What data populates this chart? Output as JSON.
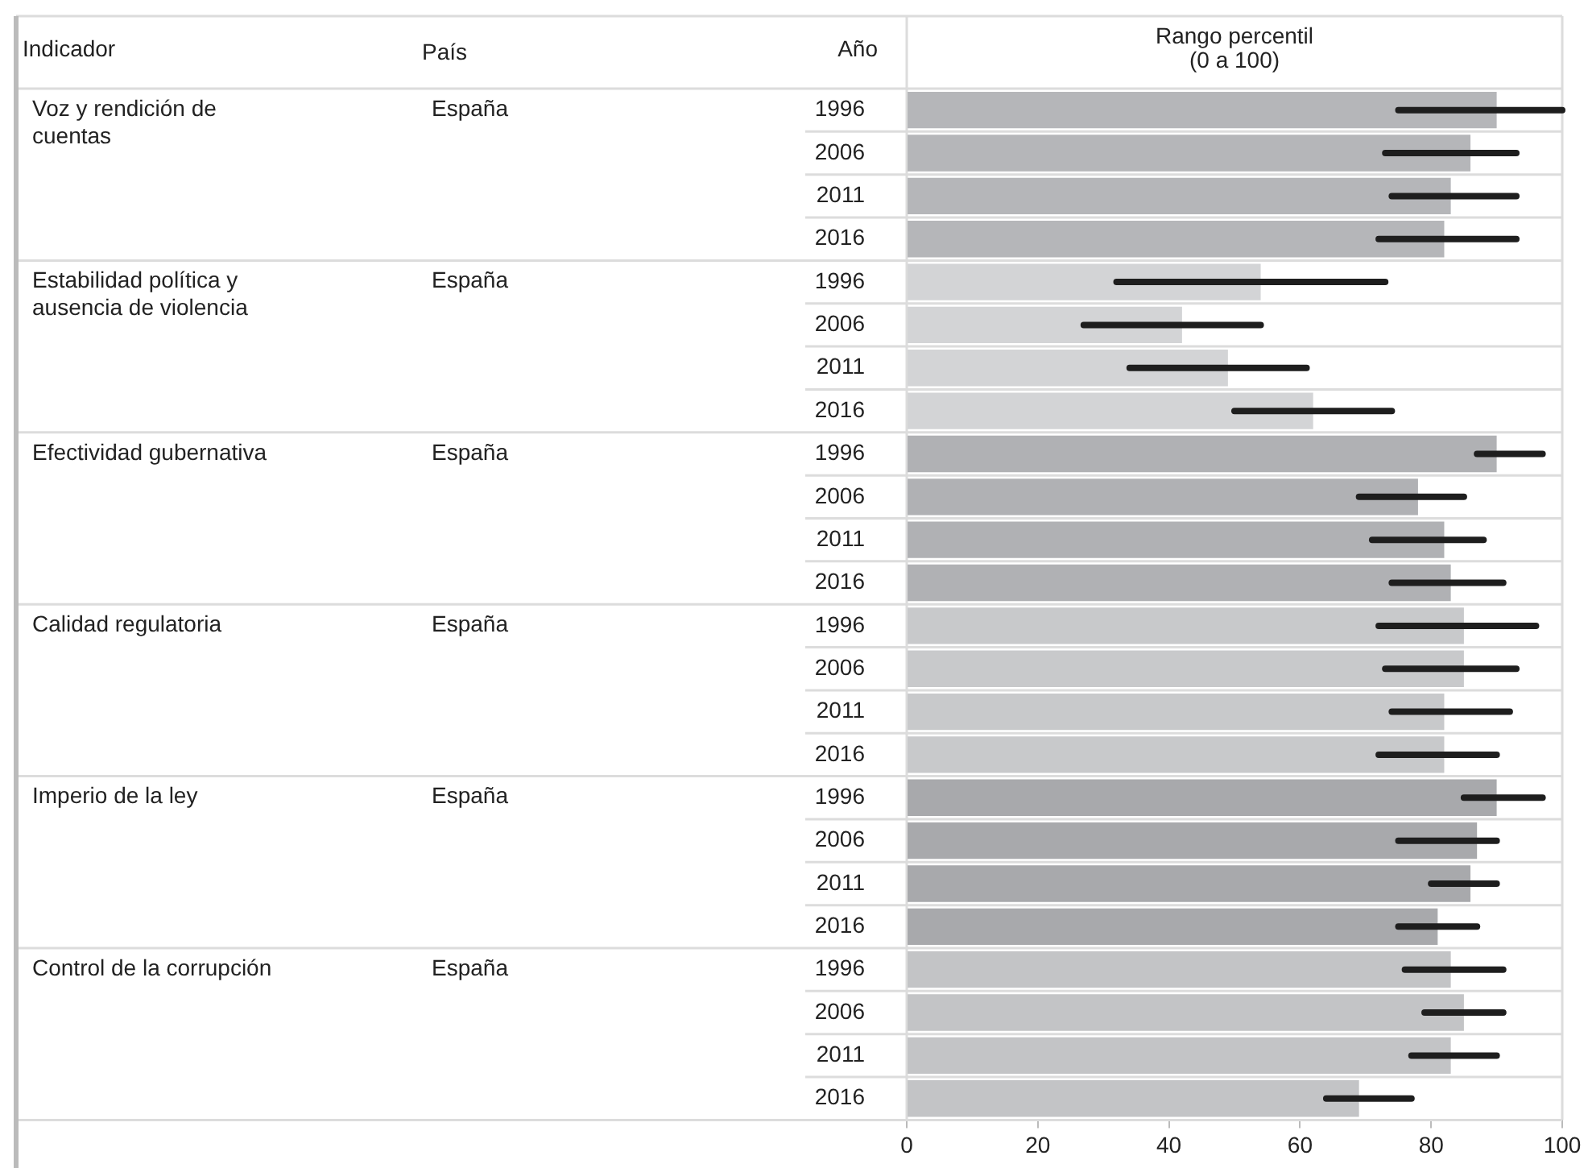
{
  "chart_data": {
    "type": "bar",
    "orientation": "horizontal",
    "xlabel": "Rango percentil\n(0 a 100)",
    "categories": [
      "1996",
      "2006",
      "2011",
      "2016",
      "1996",
      "2006",
      "2011",
      "2016",
      "1996",
      "2006",
      "2011",
      "2016",
      "1996",
      "2006",
      "2011",
      "2016",
      "1996",
      "2006",
      "2011",
      "2016",
      "1996",
      "2006",
      "2011",
      "2016"
    ],
    "values": [
      90,
      86,
      83,
      82,
      54,
      42,
      49,
      62,
      90,
      78,
      82,
      83,
      85,
      85,
      82,
      82,
      90,
      87,
      86,
      81,
      83,
      85,
      83,
      69
    ],
    "errors": [
      [
        75,
        100
      ],
      [
        73,
        93
      ],
      [
        74,
        93
      ],
      [
        72,
        93
      ],
      [
        32,
        73
      ],
      [
        27,
        54
      ],
      [
        34,
        61
      ],
      [
        50,
        74
      ],
      [
        87,
        97
      ],
      [
        69,
        85
      ],
      [
        71,
        88
      ],
      [
        74,
        91
      ],
      [
        72,
        96
      ],
      [
        73,
        93
      ],
      [
        74,
        92
      ],
      [
        72,
        90
      ],
      [
        85,
        97
      ],
      [
        75,
        90
      ],
      [
        80,
        90
      ],
      [
        75,
        87
      ],
      [
        76,
        91
      ],
      [
        79,
        91
      ],
      [
        77,
        90
      ],
      [
        64,
        77
      ]
    ],
    "colors": [
      "#b5b6b9",
      "#b5b6b9",
      "#b5b6b9",
      "#b5b6b9",
      "#d3d4d6",
      "#d3d4d6",
      "#d3d4d6",
      "#d3d4d6",
      "#b0b1b4",
      "#b0b1b4",
      "#b0b1b4",
      "#b0b1b4",
      "#c8c9cb",
      "#c8c9cb",
      "#c8c9cb",
      "#c8c9cb",
      "#a8a9ac",
      "#a8a9ac",
      "#a8a9ac",
      "#a8a9ac",
      "#c3c4c6",
      "#c3c4c6",
      "#c3c4c6",
      "#c3c4c6"
    ],
    "xlim": [
      0,
      100
    ],
    "xticks": [
      0,
      20,
      40,
      60,
      80,
      100
    ],
    "legend": false,
    "annotations": [
      "Indicador",
      "País",
      "Año",
      "Voz y rendición de cuentas",
      "España",
      "Estabilidad política y ausencia de violencia",
      "España",
      "Efectividad gubernativa",
      "España",
      "Calidad regulatoria",
      "España",
      "Imperio de la ley",
      "España",
      "Control de la corrupción",
      "España"
    ]
  }
}
